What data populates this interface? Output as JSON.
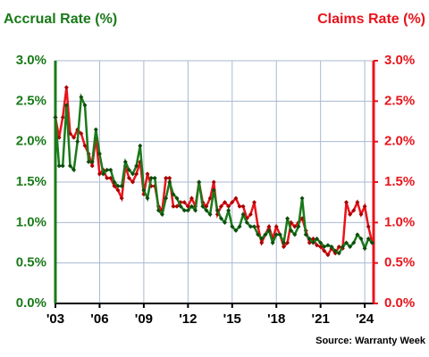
{
  "chart_data": {
    "type": "line",
    "title_left": "Accrual Rate (%)",
    "title_right": "Claims Rate (%)",
    "source": "Source: Warranty Week",
    "x": [
      2003,
      2003.25,
      2003.5,
      2003.75,
      2004,
      2004.25,
      2004.5,
      2004.75,
      2005,
      2005.25,
      2005.5,
      2005.75,
      2006,
      2006.25,
      2006.5,
      2006.75,
      2007,
      2007.25,
      2007.5,
      2007.75,
      2008,
      2008.25,
      2008.5,
      2008.75,
      2009,
      2009.25,
      2009.5,
      2009.75,
      2010,
      2010.25,
      2010.5,
      2010.75,
      2011,
      2011.25,
      2011.5,
      2011.75,
      2012,
      2012.25,
      2012.5,
      2012.75,
      2013,
      2013.25,
      2013.5,
      2013.75,
      2014,
      2014.25,
      2014.5,
      2014.75,
      2015,
      2015.25,
      2015.5,
      2015.75,
      2016,
      2016.25,
      2016.5,
      2016.75,
      2017,
      2017.25,
      2017.5,
      2017.75,
      2018,
      2018.25,
      2018.5,
      2018.75,
      2019,
      2019.25,
      2019.5,
      2019.75,
      2020,
      2020.25,
      2020.5,
      2020.75,
      2021,
      2021.25,
      2021.5,
      2021.75,
      2022,
      2022.25,
      2022.5,
      2022.75,
      2023,
      2023.25,
      2023.5,
      2023.75,
      2024,
      2024.25,
      2024.5
    ],
    "series": [
      {
        "name": "Accrual Rate",
        "color": "#1a7a1a",
        "axis": "y",
        "values": [
          2.3,
          1.7,
          1.7,
          2.45,
          1.7,
          1.65,
          2.0,
          2.55,
          2.45,
          1.75,
          1.75,
          2.15,
          1.85,
          1.6,
          1.65,
          1.65,
          1.5,
          1.45,
          1.45,
          1.75,
          1.65,
          1.6,
          1.7,
          1.95,
          1.4,
          1.3,
          1.55,
          1.55,
          1.15,
          1.1,
          1.3,
          1.5,
          1.35,
          1.3,
          1.2,
          1.15,
          1.15,
          1.2,
          1.15,
          1.5,
          1.2,
          1.15,
          1.1,
          1.4,
          1.15,
          1.05,
          1.0,
          1.15,
          0.95,
          0.9,
          0.95,
          1.1,
          1.0,
          0.95,
          0.95,
          0.85,
          0.8,
          0.85,
          0.9,
          0.75,
          0.85,
          0.85,
          0.75,
          1.05,
          0.9,
          0.85,
          0.95,
          1.3,
          0.85,
          0.8,
          0.75,
          0.8,
          0.75,
          0.7,
          0.72,
          0.7,
          0.65,
          0.62,
          0.7,
          0.75,
          0.7,
          0.75,
          0.85,
          0.8,
          0.68,
          0.8,
          0.75
        ]
      },
      {
        "name": "Claims Rate",
        "color": "#e8141c",
        "axis": "y2",
        "values": [
          2.3,
          2.05,
          2.3,
          2.67,
          2.1,
          2.05,
          2.15,
          2.1,
          1.95,
          1.85,
          1.7,
          2.05,
          1.6,
          1.65,
          1.55,
          1.55,
          1.45,
          1.4,
          1.3,
          1.7,
          1.55,
          1.5,
          1.6,
          1.75,
          1.35,
          1.6,
          1.45,
          1.45,
          1.2,
          1.15,
          1.55,
          1.55,
          1.2,
          1.2,
          1.25,
          1.25,
          1.2,
          1.3,
          1.2,
          1.5,
          1.25,
          1.2,
          1.3,
          1.5,
          1.1,
          1.2,
          1.25,
          1.2,
          1.25,
          1.3,
          1.2,
          1.2,
          1.05,
          1.1,
          1.25,
          0.95,
          0.75,
          0.85,
          0.95,
          0.8,
          0.95,
          0.85,
          0.7,
          0.75,
          1.0,
          0.95,
          1.0,
          1.05,
          0.9,
          0.75,
          0.8,
          0.72,
          0.7,
          0.65,
          0.6,
          0.68,
          0.62,
          0.7,
          0.68,
          1.25,
          1.1,
          1.15,
          1.25,
          1.1,
          1.2,
          0.95,
          0.75
        ]
      }
    ],
    "xlim": [
      2003,
      2024.6
    ],
    "xticks": [
      {
        "value": 2003,
        "label": "'03"
      },
      {
        "value": 2006,
        "label": "'06"
      },
      {
        "value": 2009,
        "label": "'09"
      },
      {
        "value": 2012,
        "label": "'12"
      },
      {
        "value": 2015,
        "label": "'15"
      },
      {
        "value": 2018,
        "label": "'18"
      },
      {
        "value": 2021,
        "label": "'21"
      },
      {
        "value": 2024,
        "label": "'24"
      }
    ],
    "ylim": [
      0,
      3
    ],
    "yticks": [
      {
        "value": 0,
        "label": "0.0%"
      },
      {
        "value": 0.5,
        "label": "0.5%"
      },
      {
        "value": 1,
        "label": "1.0%"
      },
      {
        "value": 1.5,
        "label": "1.5%"
      },
      {
        "value": 2,
        "label": "2.0%"
      },
      {
        "value": 2.5,
        "label": "2.5%"
      },
      {
        "value": 3,
        "label": "3.0%"
      }
    ],
    "y2lim": [
      0,
      3
    ],
    "y2ticks": [
      {
        "value": 0,
        "label": "0.0%"
      },
      {
        "value": 0.5,
        "label": "0.5%"
      },
      {
        "value": 1,
        "label": "1.0%"
      },
      {
        "value": 1.5,
        "label": "1.5%"
      },
      {
        "value": 2,
        "label": "2.0%"
      },
      {
        "value": 2.5,
        "label": "2.5%"
      },
      {
        "value": 3,
        "label": "3.0%"
      }
    ],
    "grid": true
  }
}
